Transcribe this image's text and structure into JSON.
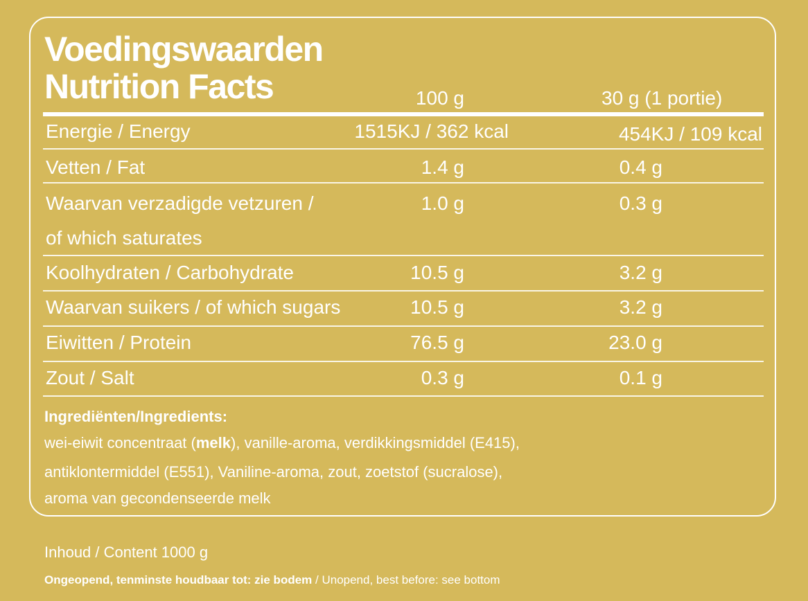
{
  "title_nl": "Voedingswaarden",
  "title_en": "Nutrition Facts",
  "columns": {
    "per_100": "100 g",
    "per_portion": "30 g (1 portie)"
  },
  "rows": [
    {
      "label": "Energie / Energy",
      "per_100": "1515KJ / 362 kcal",
      "per_portion": "454KJ / 109 kcal"
    },
    {
      "label": "Vetten / Fat",
      "per_100": "1.4 g",
      "per_portion": "0.4 g"
    },
    {
      "label": "Waarvan verzadigde vetzuren /",
      "label2": "of which saturates",
      "per_100": "1.0 g",
      "per_portion": "0.3 g"
    },
    {
      "label": "Koolhydraten / Carbohydrate",
      "per_100": "10.5 g",
      "per_portion": "3.2 g"
    },
    {
      "label": "Waarvan suikers / of which sugars",
      "per_100": "10.5 g",
      "per_portion": "3.2 g"
    },
    {
      "label": "Eiwitten / Protein",
      "per_100": "76.5 g",
      "per_portion": "23.0 g"
    },
    {
      "label": "Zout / Salt",
      "per_100": "0.3 g",
      "per_portion": "0.1 g"
    }
  ],
  "ingredients": {
    "title": "Ingrediënten/Ingredients:",
    "line1_pre": "wei-eiwit concentraat (",
    "line1_bold": "melk",
    "line1_post": "), vanille-aroma, verdikkingsmiddel (E415),",
    "line2": "antiklontermiddel (E551), Vaniline-aroma, zout, zoetstof (sucralose),",
    "line3": "aroma van gecondenseerde melk"
  },
  "content": "Inhoud / Content 1000 g",
  "shelf": {
    "bold": "Ongeopend, tenminste houdbaar tot: zie bodem",
    "regular": " / Unopend, best before: see bottom"
  },
  "colors": {
    "background": "#d5b95b",
    "text": "#ffffff"
  }
}
